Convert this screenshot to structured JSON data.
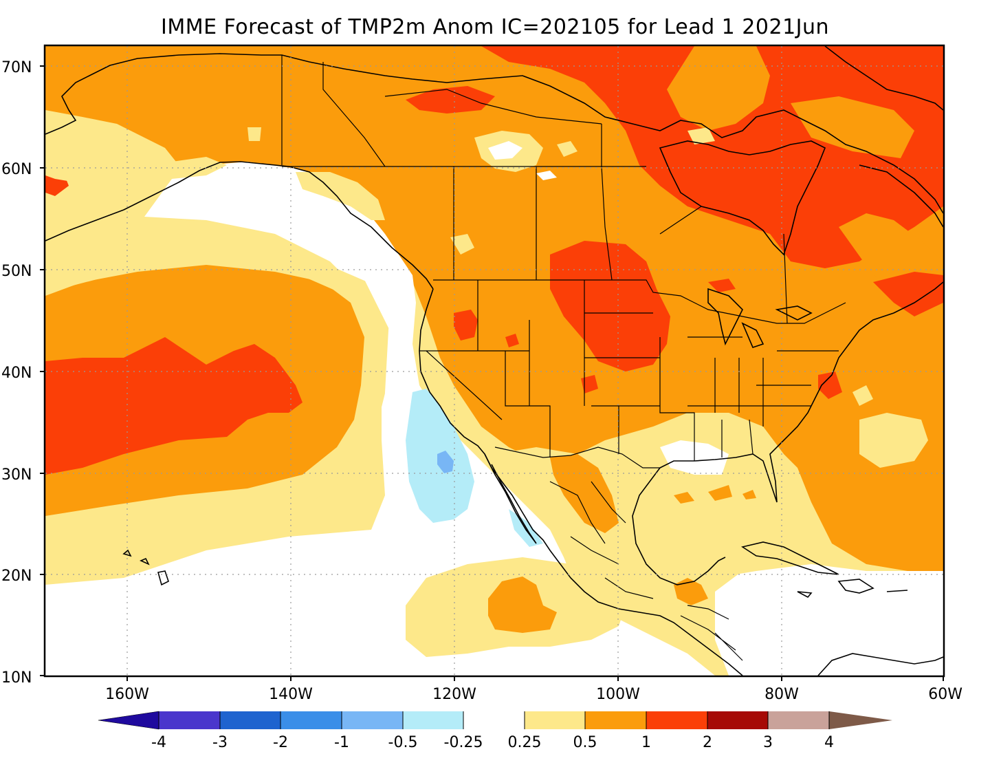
{
  "title": "IMME Forecast of TMP2m Anom IC=202105 for Lead 1 2021Jun",
  "axes": {
    "lat_labels": [
      "70N",
      "60N",
      "50N",
      "40N",
      "30N",
      "20N",
      "10N"
    ],
    "lon_labels": [
      "160W",
      "140W",
      "120W",
      "100W",
      "80W",
      "60W"
    ]
  },
  "map_extent": {
    "lon_min": -170,
    "lon_max": -60,
    "lat_min": 10,
    "lat_max": 72
  },
  "grid": {
    "lon_step": 20,
    "lat_step": 10,
    "style": "dotted"
  },
  "colorbar": {
    "labels": [
      "-4",
      "-3",
      "-2",
      "-1",
      "-0.5",
      "-0.25",
      "0.25",
      "0.5",
      "1",
      "2",
      "3",
      "4"
    ],
    "colors": {
      "below_min": "#1f0a9e",
      "-4_-3": "#4a36cc",
      "-3_-2": "#1e63cf",
      "-2_-1": "#3a8ee8",
      "-1_-0.5": "#78b6f5",
      "-0.5_-0.25": "#b4ecf8",
      "-0.25_0.25": "#ffffff",
      "0.25_0.5": "#fde88a",
      "0.5_1": "#fb9c0c",
      "1_2": "#fb3f07",
      "2_3": "#a60a06",
      "3_4": "#c9a29a",
      "above_max": "#7e5a48"
    }
  },
  "map_colors": {
    "pale_yellow": "#fde88a",
    "orange": "#fb9c0c",
    "red_orange": "#fb3f07",
    "light_blue": "#b4ecf8",
    "mid_blue": "#78b6f5",
    "white": "#ffffff"
  }
}
